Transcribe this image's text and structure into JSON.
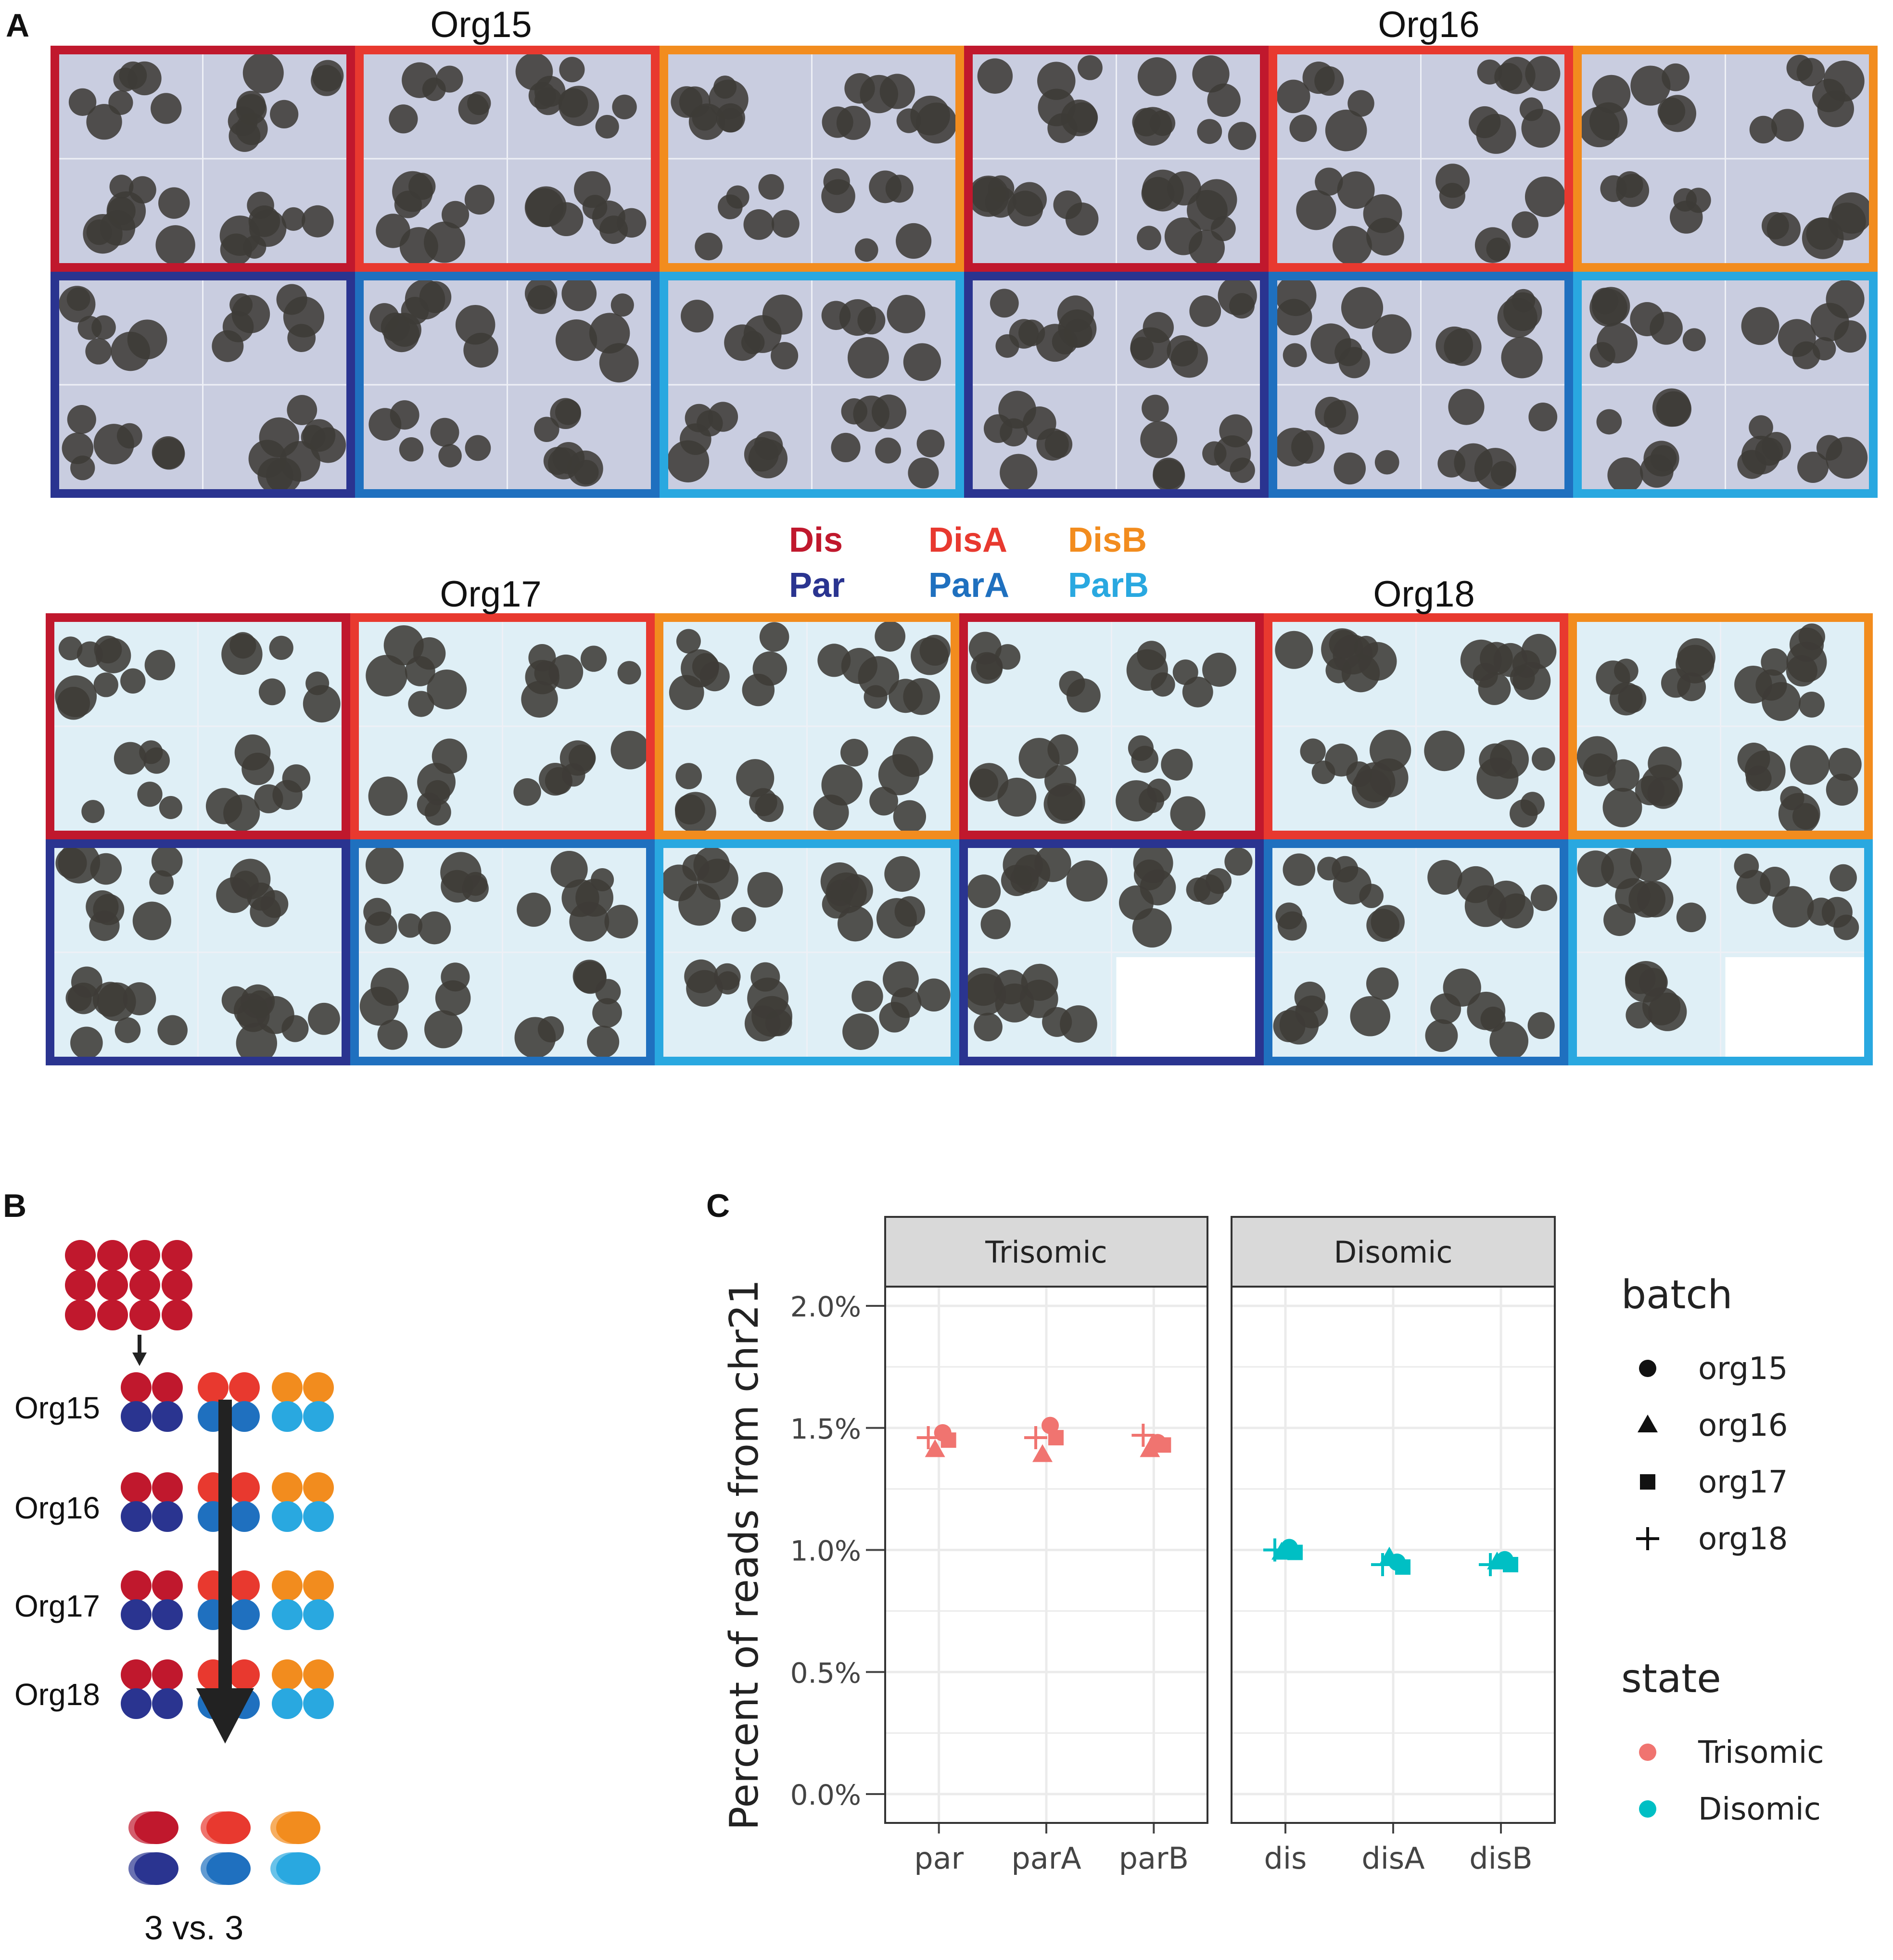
{
  "panels": {
    "a": "A",
    "b": "B",
    "c": "C"
  },
  "organoid_lines": [
    "Org15",
    "Org16",
    "Org17",
    "Org18"
  ],
  "condition_legend": [
    {
      "label": "Dis",
      "color": "#c0182d"
    },
    {
      "label": "DisA",
      "color": "#e8392f"
    },
    {
      "label": "DisB",
      "color": "#f28c1e"
    },
    {
      "label": "Par",
      "color": "#2a3490"
    },
    {
      "label": "ParA",
      "color": "#1f70bf"
    },
    {
      "label": "ParB",
      "color": "#29a8e0"
    }
  ],
  "schematic": {
    "rows": [
      "Org15",
      "Org16",
      "Org17",
      "Org18"
    ],
    "comparison_label": "3 vs. 3"
  },
  "chart_data": {
    "type": "scatter",
    "ylabel": "Percent of reads from chr21",
    "ylim": [
      0,
      0.02
    ],
    "yticks": [
      "0.0%",
      "0.5%",
      "1.0%",
      "1.5%",
      "2.0%"
    ],
    "facets": [
      {
        "name": "Trisomic",
        "color": "#f07470",
        "categories": [
          "par",
          "parA",
          "parB"
        ],
        "points": [
          {
            "x": "par",
            "batch": "org15",
            "y": 0.0148
          },
          {
            "x": "par",
            "batch": "org16",
            "y": 0.0141
          },
          {
            "x": "par",
            "batch": "org17",
            "y": 0.0145
          },
          {
            "x": "par",
            "batch": "org18",
            "y": 0.0146
          },
          {
            "x": "parA",
            "batch": "org15",
            "y": 0.0151
          },
          {
            "x": "parA",
            "batch": "org16",
            "y": 0.0139
          },
          {
            "x": "parA",
            "batch": "org17",
            "y": 0.0146
          },
          {
            "x": "parA",
            "batch": "org18",
            "y": 0.0146
          },
          {
            "x": "parB",
            "batch": "org15",
            "y": 0.0144
          },
          {
            "x": "parB",
            "batch": "org16",
            "y": 0.0141
          },
          {
            "x": "parB",
            "batch": "org17",
            "y": 0.0143
          },
          {
            "x": "parB",
            "batch": "org18",
            "y": 0.0147
          }
        ]
      },
      {
        "name": "Disomic",
        "color": "#00bfc4",
        "categories": [
          "dis",
          "disA",
          "disB"
        ],
        "points": [
          {
            "x": "dis",
            "batch": "org15",
            "y": 0.0101
          },
          {
            "x": "dis",
            "batch": "org16",
            "y": 0.0099
          },
          {
            "x": "dis",
            "batch": "org17",
            "y": 0.0099
          },
          {
            "x": "dis",
            "batch": "org18",
            "y": 0.01
          },
          {
            "x": "disA",
            "batch": "org15",
            "y": 0.0095
          },
          {
            "x": "disA",
            "batch": "org16",
            "y": 0.0097
          },
          {
            "x": "disA",
            "batch": "org17",
            "y": 0.0093
          },
          {
            "x": "disA",
            "batch": "org18",
            "y": 0.0094
          },
          {
            "x": "disB",
            "batch": "org15",
            "y": 0.0096
          },
          {
            "x": "disB",
            "batch": "org16",
            "y": 0.0095
          },
          {
            "x": "disB",
            "batch": "org17",
            "y": 0.0094
          },
          {
            "x": "disB",
            "batch": "org18",
            "y": 0.0094
          }
        ]
      }
    ],
    "legend": {
      "batch_title": "batch",
      "batch_items": [
        {
          "label": "org15",
          "shape": "circle"
        },
        {
          "label": "org16",
          "shape": "triangle"
        },
        {
          "label": "org17",
          "shape": "square"
        },
        {
          "label": "org18",
          "shape": "plus"
        }
      ],
      "state_title": "state",
      "state_items": [
        {
          "label": "Trisomic",
          "color": "#f07470"
        },
        {
          "label": "Disomic",
          "color": "#00bfc4"
        }
      ]
    }
  }
}
